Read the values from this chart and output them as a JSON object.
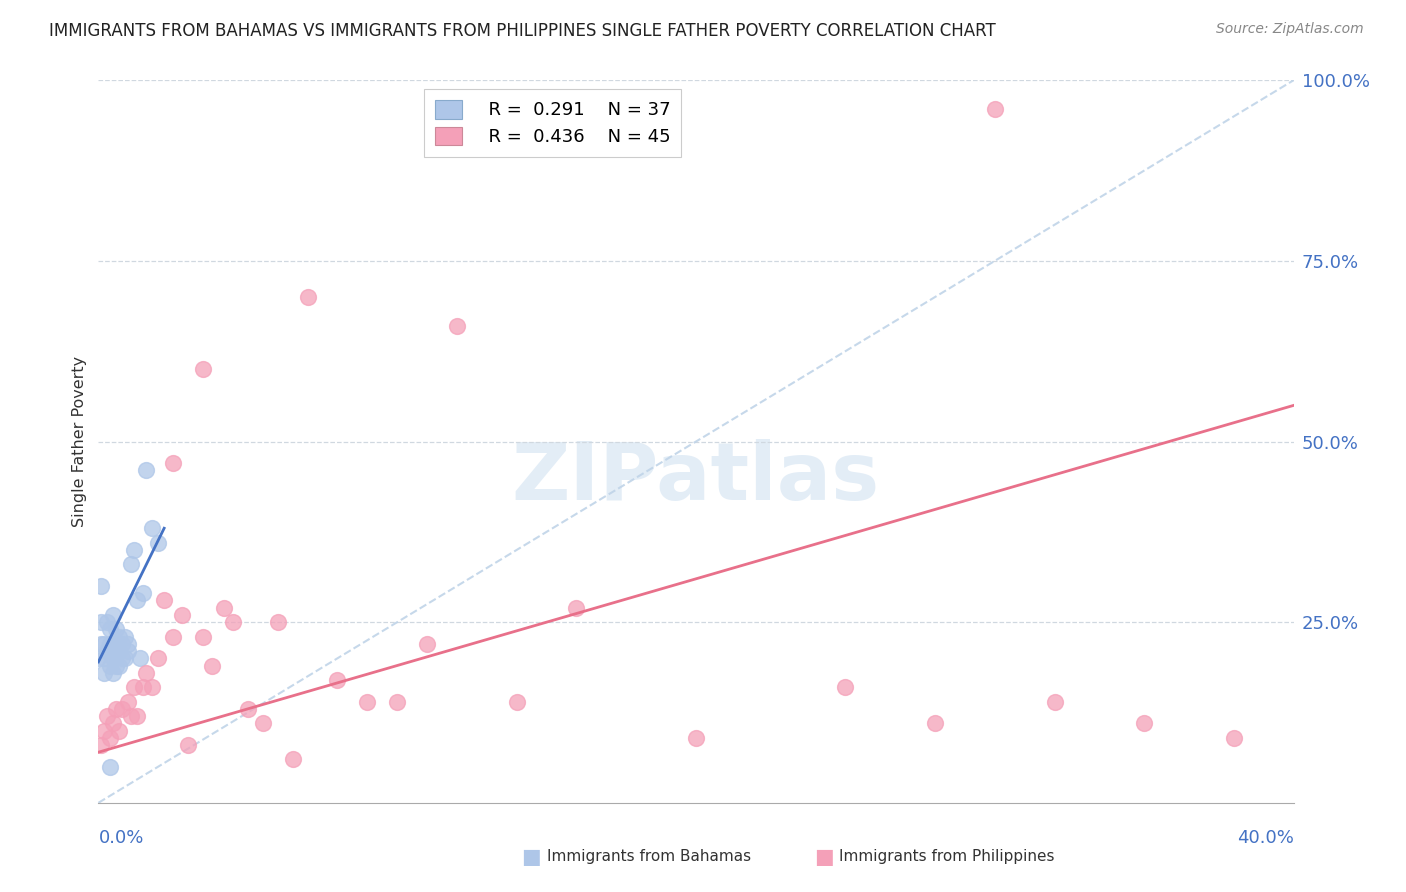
{
  "title": "IMMIGRANTS FROM BAHAMAS VS IMMIGRANTS FROM PHILIPPINES SINGLE FATHER POVERTY CORRELATION CHART",
  "source": "Source: ZipAtlas.com",
  "ylabel": "Single Father Poverty",
  "bahamas_color": "#aec6e8",
  "philippines_color": "#f4a0b8",
  "bahamas_line_color": "#4472c4",
  "philippines_line_color": "#e8708a",
  "dashed_line_color": "#c0d4e8",
  "watermark": "ZIPatlas",
  "xmin": 0.0,
  "xmax": 0.4,
  "ymin": 0.0,
  "ymax": 1.0,
  "bahamas_R": 0.291,
  "bahamas_N": 37,
  "philippines_R": 0.436,
  "philippines_N": 45,
  "bahamas_x": [
    0.0,
    0.001,
    0.001,
    0.001,
    0.002,
    0.002,
    0.002,
    0.003,
    0.003,
    0.004,
    0.004,
    0.004,
    0.005,
    0.005,
    0.005,
    0.005,
    0.006,
    0.006,
    0.006,
    0.007,
    0.007,
    0.007,
    0.008,
    0.008,
    0.009,
    0.009,
    0.01,
    0.01,
    0.011,
    0.012,
    0.013,
    0.014,
    0.015,
    0.016,
    0.018,
    0.02,
    0.004
  ],
  "bahamas_y": [
    0.2,
    0.22,
    0.25,
    0.3,
    0.18,
    0.2,
    0.22,
    0.21,
    0.25,
    0.19,
    0.22,
    0.24,
    0.18,
    0.2,
    0.22,
    0.26,
    0.19,
    0.21,
    0.24,
    0.19,
    0.21,
    0.23,
    0.2,
    0.22,
    0.2,
    0.23,
    0.21,
    0.22,
    0.33,
    0.35,
    0.28,
    0.2,
    0.29,
    0.46,
    0.38,
    0.36,
    0.05
  ],
  "philippines_x": [
    0.001,
    0.002,
    0.003,
    0.004,
    0.005,
    0.006,
    0.007,
    0.008,
    0.01,
    0.011,
    0.012,
    0.013,
    0.015,
    0.016,
    0.018,
    0.02,
    0.022,
    0.025,
    0.028,
    0.03,
    0.035,
    0.038,
    0.042,
    0.045,
    0.05,
    0.055,
    0.06,
    0.065,
    0.08,
    0.09,
    0.1,
    0.12,
    0.14,
    0.16,
    0.2,
    0.25,
    0.28,
    0.3,
    0.32,
    0.35,
    0.38,
    0.035,
    0.025,
    0.07,
    0.11
  ],
  "philippines_y": [
    0.08,
    0.1,
    0.12,
    0.09,
    0.11,
    0.13,
    0.1,
    0.13,
    0.14,
    0.12,
    0.16,
    0.12,
    0.16,
    0.18,
    0.16,
    0.2,
    0.28,
    0.23,
    0.26,
    0.08,
    0.23,
    0.19,
    0.27,
    0.25,
    0.13,
    0.11,
    0.25,
    0.06,
    0.17,
    0.14,
    0.14,
    0.66,
    0.14,
    0.27,
    0.09,
    0.16,
    0.11,
    0.96,
    0.14,
    0.11,
    0.09,
    0.6,
    0.47,
    0.7,
    0.22
  ],
  "bahamas_line_x": [
    0.0,
    0.022
  ],
  "bahamas_line_y": [
    0.195,
    0.38
  ],
  "philippines_line_x": [
    0.0,
    0.4
  ],
  "philippines_line_y": [
    0.07,
    0.55
  ]
}
